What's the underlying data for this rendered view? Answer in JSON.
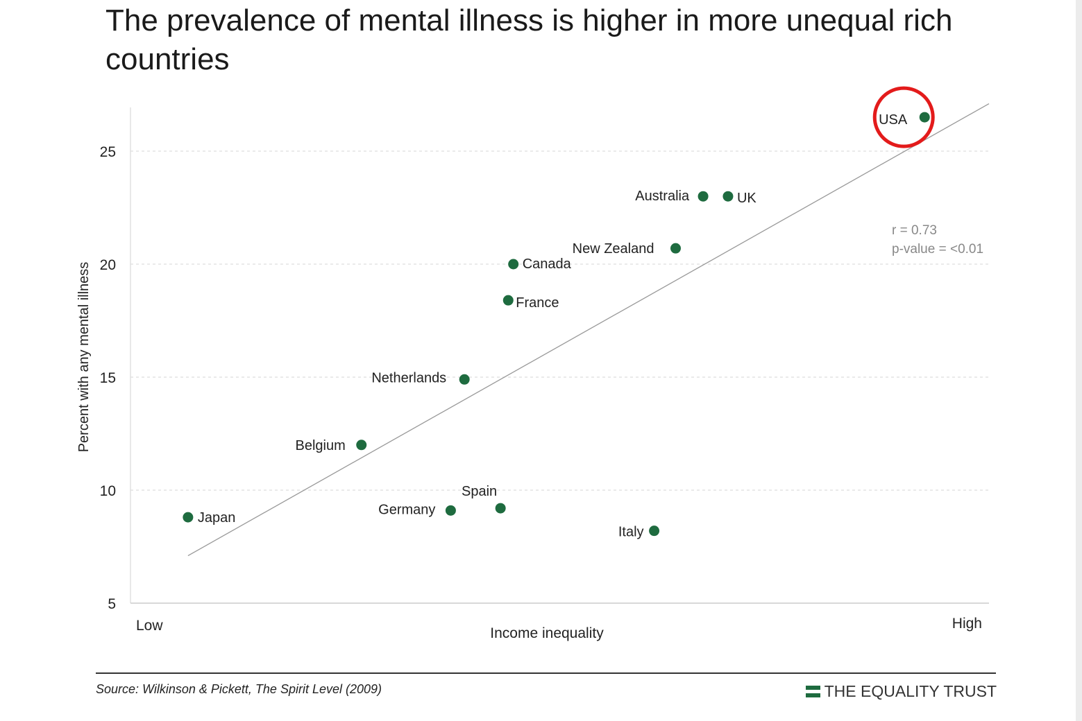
{
  "title": "The prevalence of mental illness is higher in more unequal rich countries",
  "source": "Source: Wilkinson & Pickett, The Spirit Level (2009)",
  "brand": "THE EQUALITY TRUST",
  "colors": {
    "point": "#1e6b3f",
    "highlight": "#e31b1b",
    "trend": "#999999",
    "grid": "#dddddd"
  },
  "chart_data": {
    "type": "scatter",
    "ylabel": "Percent with any mental illness",
    "xlabel": "Income inequality",
    "x_low_label": "Low",
    "x_high_label": "High",
    "xlim": [
      0,
      100
    ],
    "ylim": [
      5,
      27
    ],
    "yticks": [
      5,
      10,
      15,
      20,
      25
    ],
    "grid": true,
    "points": [
      {
        "name": "USA",
        "x": 92.5,
        "y": 26.5,
        "highlighted": true
      },
      {
        "name": "Australia",
        "x": 66.7,
        "y": 23.0
      },
      {
        "name": "UK",
        "x": 69.6,
        "y": 23.0
      },
      {
        "name": "New Zealand",
        "x": 63.5,
        "y": 20.7
      },
      {
        "name": "Canada",
        "x": 44.6,
        "y": 20.0
      },
      {
        "name": "France",
        "x": 44.0,
        "y": 18.4
      },
      {
        "name": "Netherlands",
        "x": 38.9,
        "y": 14.9
      },
      {
        "name": "Belgium",
        "x": 26.9,
        "y": 12.0
      },
      {
        "name": "Japan",
        "x": 6.7,
        "y": 8.8
      },
      {
        "name": "Germany",
        "x": 37.3,
        "y": 9.1
      },
      {
        "name": "Spain",
        "x": 43.1,
        "y": 9.2
      },
      {
        "name": "Italy",
        "x": 61.0,
        "y": 8.2
      }
    ],
    "trendline": {
      "x": [
        6.7,
        100
      ],
      "y": [
        7.1,
        27.1
      ]
    },
    "stats": {
      "r": "r = 0.73",
      "p": "p-value = <0.01"
    }
  }
}
